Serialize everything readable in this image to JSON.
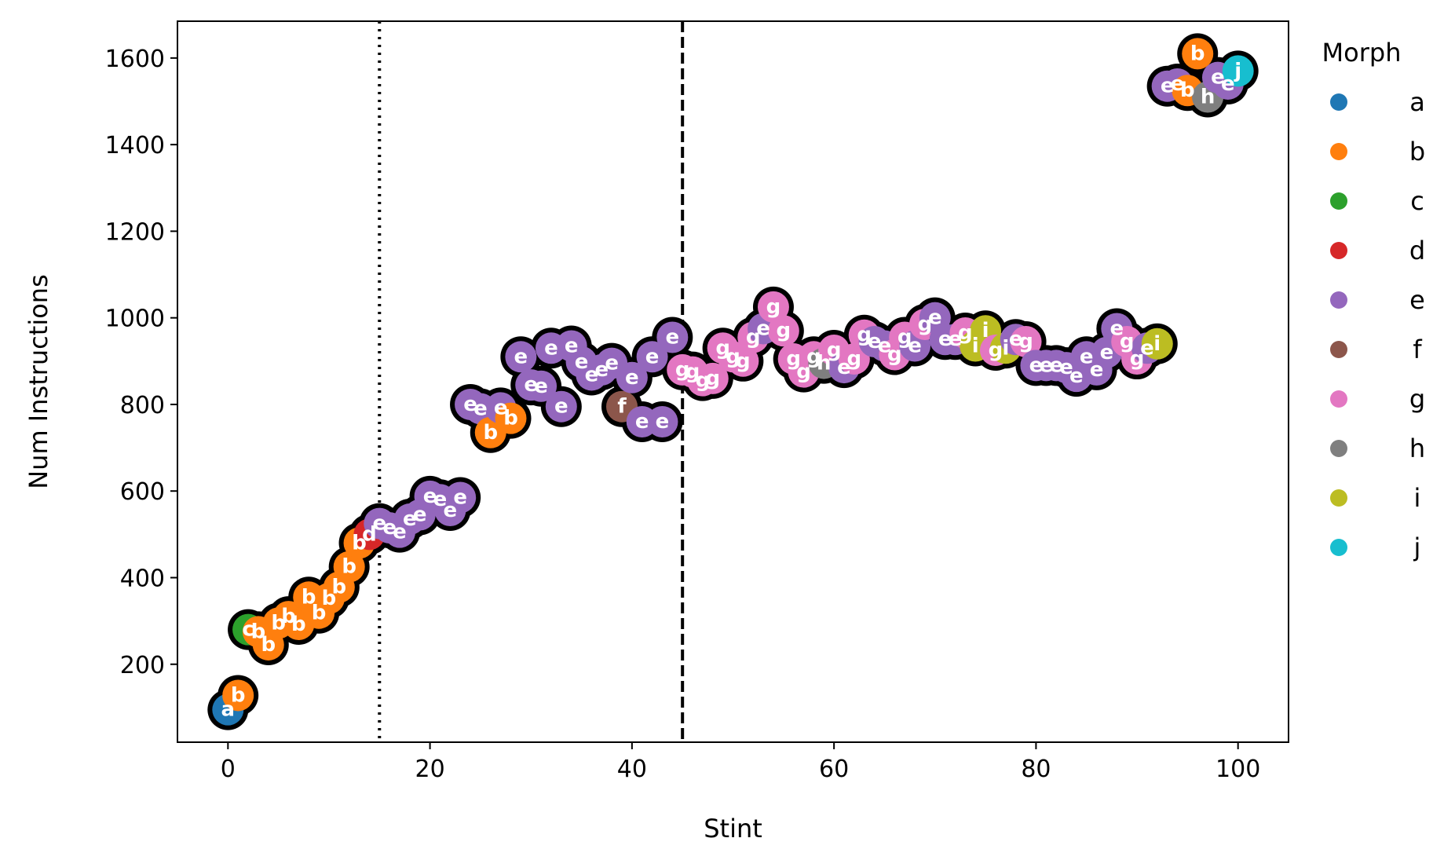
{
  "chart_data": {
    "type": "scatter",
    "xlabel": "Stint",
    "ylabel": "Num Instructions",
    "xlim": [
      -5,
      105
    ],
    "ylim": [
      20,
      1685
    ],
    "xticks": [
      0,
      20,
      40,
      60,
      80,
      100
    ],
    "yticks": [
      200,
      400,
      600,
      800,
      1000,
      1200,
      1400,
      1600
    ],
    "vlines": [
      {
        "x": 15,
        "style": "dotted",
        "color": "#000000"
      },
      {
        "x": 45,
        "style": "dashed",
        "color": "#000000"
      }
    ],
    "legend": {
      "title": "Morph",
      "placement": "right-outside-top",
      "entries": [
        {
          "label": "a",
          "color": "#1f77b4"
        },
        {
          "label": "b",
          "color": "#ff7f0e"
        },
        {
          "label": "c",
          "color": "#2ca02c"
        },
        {
          "label": "d",
          "color": "#d62728"
        },
        {
          "label": "e",
          "color": "#9467bd"
        },
        {
          "label": "f",
          "color": "#8c564b"
        },
        {
          "label": "g",
          "color": "#e377c2"
        },
        {
          "label": "h",
          "color": "#7f7f7f"
        },
        {
          "label": "i",
          "color": "#bcbd22"
        },
        {
          "label": "j",
          "color": "#17becf"
        }
      ]
    },
    "points": [
      {
        "x": 0,
        "y": 95,
        "m": "a"
      },
      {
        "x": 1,
        "y": 128,
        "m": "b"
      },
      {
        "x": 2,
        "y": 280,
        "m": "c"
      },
      {
        "x": 3,
        "y": 275,
        "m": "b"
      },
      {
        "x": 4,
        "y": 245,
        "m": "b"
      },
      {
        "x": 5,
        "y": 295,
        "m": "b"
      },
      {
        "x": 6,
        "y": 310,
        "m": "b"
      },
      {
        "x": 7,
        "y": 292,
        "m": "b"
      },
      {
        "x": 8,
        "y": 355,
        "m": "b"
      },
      {
        "x": 9,
        "y": 318,
        "m": "b"
      },
      {
        "x": 10,
        "y": 352,
        "m": "b"
      },
      {
        "x": 11,
        "y": 378,
        "m": "b"
      },
      {
        "x": 12,
        "y": 425,
        "m": "b"
      },
      {
        "x": 13,
        "y": 480,
        "m": "b"
      },
      {
        "x": 14,
        "y": 500,
        "m": "d"
      },
      {
        "x": 15,
        "y": 525,
        "m": "e"
      },
      {
        "x": 16,
        "y": 515,
        "m": "e"
      },
      {
        "x": 17,
        "y": 505,
        "m": "e"
      },
      {
        "x": 18,
        "y": 535,
        "m": "e"
      },
      {
        "x": 19,
        "y": 545,
        "m": "e"
      },
      {
        "x": 20,
        "y": 588,
        "m": "e"
      },
      {
        "x": 21,
        "y": 580,
        "m": "e"
      },
      {
        "x": 22,
        "y": 555,
        "m": "e"
      },
      {
        "x": 23,
        "y": 585,
        "m": "e"
      },
      {
        "x": 24,
        "y": 800,
        "m": "e"
      },
      {
        "x": 25,
        "y": 790,
        "m": "e"
      },
      {
        "x": 26,
        "y": 735,
        "m": "b"
      },
      {
        "x": 27,
        "y": 792,
        "m": "e"
      },
      {
        "x": 28,
        "y": 768,
        "m": "b"
      },
      {
        "x": 29,
        "y": 910,
        "m": "e"
      },
      {
        "x": 30,
        "y": 845,
        "m": "e"
      },
      {
        "x": 31,
        "y": 842,
        "m": "e"
      },
      {
        "x": 32,
        "y": 930,
        "m": "e"
      },
      {
        "x": 33,
        "y": 795,
        "m": "e"
      },
      {
        "x": 34,
        "y": 935,
        "m": "e"
      },
      {
        "x": 35,
        "y": 898,
        "m": "e"
      },
      {
        "x": 36,
        "y": 868,
        "m": "e"
      },
      {
        "x": 37,
        "y": 880,
        "m": "e"
      },
      {
        "x": 38,
        "y": 895,
        "m": "e"
      },
      {
        "x": 39,
        "y": 795,
        "m": "f"
      },
      {
        "x": 40,
        "y": 862,
        "m": "e"
      },
      {
        "x": 41,
        "y": 760,
        "m": "e"
      },
      {
        "x": 42,
        "y": 910,
        "m": "e"
      },
      {
        "x": 43,
        "y": 760,
        "m": "e"
      },
      {
        "x": 44,
        "y": 955,
        "m": "e"
      },
      {
        "x": 45,
        "y": 880,
        "m": "g"
      },
      {
        "x": 46,
        "y": 875,
        "m": "g"
      },
      {
        "x": 47,
        "y": 855,
        "m": "g"
      },
      {
        "x": 48,
        "y": 860,
        "m": "g"
      },
      {
        "x": 49,
        "y": 930,
        "m": "g"
      },
      {
        "x": 50,
        "y": 910,
        "m": "g"
      },
      {
        "x": 51,
        "y": 900,
        "m": "g"
      },
      {
        "x": 52,
        "y": 955,
        "m": "g"
      },
      {
        "x": 53,
        "y": 975,
        "m": "e"
      },
      {
        "x": 54,
        "y": 1025,
        "m": "g"
      },
      {
        "x": 55,
        "y": 970,
        "m": "g"
      },
      {
        "x": 56,
        "y": 905,
        "m": "g"
      },
      {
        "x": 57,
        "y": 875,
        "m": "g"
      },
      {
        "x": 58,
        "y": 910,
        "m": "g"
      },
      {
        "x": 59,
        "y": 895,
        "m": "h"
      },
      {
        "x": 60,
        "y": 925,
        "m": "g"
      },
      {
        "x": 61,
        "y": 885,
        "m": "e"
      },
      {
        "x": 62,
        "y": 905,
        "m": "g"
      },
      {
        "x": 63,
        "y": 960,
        "m": "g"
      },
      {
        "x": 64,
        "y": 945,
        "m": "e"
      },
      {
        "x": 65,
        "y": 935,
        "m": "e"
      },
      {
        "x": 66,
        "y": 915,
        "m": "g"
      },
      {
        "x": 67,
        "y": 955,
        "m": "g"
      },
      {
        "x": 68,
        "y": 935,
        "m": "e"
      },
      {
        "x": 69,
        "y": 985,
        "m": "g"
      },
      {
        "x": 70,
        "y": 1000,
        "m": "e"
      },
      {
        "x": 71,
        "y": 950,
        "m": "e"
      },
      {
        "x": 72,
        "y": 950,
        "m": "e"
      },
      {
        "x": 73,
        "y": 965,
        "m": "g"
      },
      {
        "x": 74,
        "y": 935,
        "m": "i"
      },
      {
        "x": 75,
        "y": 970,
        "m": "i"
      },
      {
        "x": 76,
        "y": 925,
        "m": "g"
      },
      {
        "x": 77,
        "y": 930,
        "m": "i"
      },
      {
        "x": 78,
        "y": 950,
        "m": "e"
      },
      {
        "x": 79,
        "y": 945,
        "m": "g"
      },
      {
        "x": 80,
        "y": 890,
        "m": "e"
      },
      {
        "x": 81,
        "y": 890,
        "m": "e"
      },
      {
        "x": 82,
        "y": 890,
        "m": "e"
      },
      {
        "x": 83,
        "y": 885,
        "m": "e"
      },
      {
        "x": 84,
        "y": 865,
        "m": "e"
      },
      {
        "x": 85,
        "y": 910,
        "m": "e"
      },
      {
        "x": 86,
        "y": 880,
        "m": "e"
      },
      {
        "x": 87,
        "y": 920,
        "m": "e"
      },
      {
        "x": 88,
        "y": 975,
        "m": "e"
      },
      {
        "x": 89,
        "y": 945,
        "m": "g"
      },
      {
        "x": 90,
        "y": 905,
        "m": "g"
      },
      {
        "x": 91,
        "y": 930,
        "m": "e"
      },
      {
        "x": 92,
        "y": 940,
        "m": "i"
      },
      {
        "x": 93,
        "y": 1535,
        "m": "e"
      },
      {
        "x": 94,
        "y": 1540,
        "m": "e"
      },
      {
        "x": 95,
        "y": 1525,
        "m": "b"
      },
      {
        "x": 96,
        "y": 1610,
        "m": "b"
      },
      {
        "x": 97,
        "y": 1510,
        "m": "h"
      },
      {
        "x": 98,
        "y": 1555,
        "m": "e"
      },
      {
        "x": 99,
        "y": 1540,
        "m": "e"
      },
      {
        "x": 100,
        "y": 1570,
        "m": "j"
      }
    ]
  }
}
